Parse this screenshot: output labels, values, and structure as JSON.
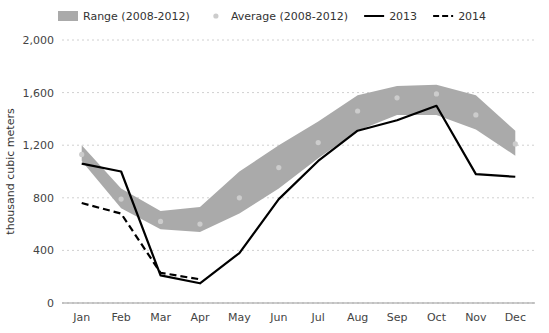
{
  "chart_data": {
    "type": "line",
    "y_label": "thousand cubic meters",
    "categories": [
      "Jan",
      "Feb",
      "Mar",
      "Apr",
      "May",
      "Jun",
      "Jul",
      "Aug",
      "Sep",
      "Oct",
      "Nov",
      "Dec"
    ],
    "series": [
      {
        "name": "Range (2008-2012)",
        "type": "area",
        "color": "#aaaaaa",
        "high": [
          1200,
          870,
          700,
          730,
          1000,
          1200,
          1380,
          1580,
          1650,
          1660,
          1580,
          1310
        ],
        "low": [
          1080,
          720,
          560,
          540,
          680,
          870,
          1100,
          1310,
          1430,
          1430,
          1320,
          1120
        ]
      },
      {
        "name": "Average (2008-2012)",
        "type": "scatter",
        "marker": "circle",
        "color": "#cccccc",
        "values": [
          1130,
          790,
          620,
          600,
          800,
          1030,
          1220,
          1460,
          1560,
          1590,
          1430,
          1210
        ]
      },
      {
        "name": "2013",
        "type": "line",
        "line_style": "solid",
        "color": "#000000",
        "values": [
          1060,
          1000,
          210,
          150,
          380,
          790,
          1080,
          1310,
          1390,
          1500,
          980,
          960
        ]
      },
      {
        "name": "2014",
        "type": "line",
        "line_style": "dashed",
        "color": "#000000",
        "values": [
          760,
          680,
          230,
          180,
          null,
          null,
          null,
          null,
          null,
          null,
          null,
          null
        ]
      }
    ],
    "ylim": [
      0,
      2000
    ],
    "yticks": [
      0,
      400,
      800,
      {
        "value": 1200,
        "label": "1,200"
      },
      {
        "value": 1600,
        "label": "1,600"
      },
      {
        "value": 2000,
        "label": "2,000"
      }
    ],
    "grid": true,
    "legend": "top"
  }
}
